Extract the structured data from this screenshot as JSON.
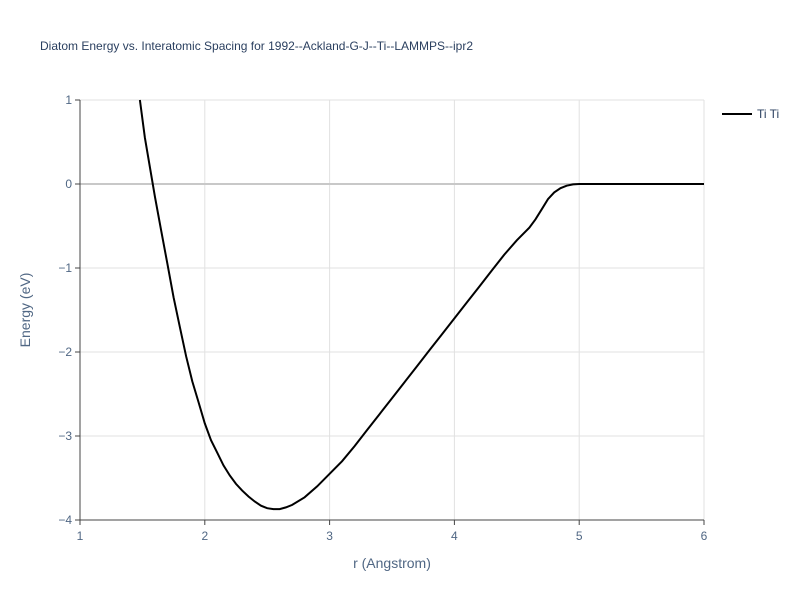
{
  "chart_data": {
    "type": "line",
    "title": "Diatom Energy vs. Interatomic Spacing for 1992--Ackland-G-J--Ti--LAMMPS--ipr2",
    "x_label": "r (Angstrom)",
    "y_label": "Energy (eV)",
    "xlim": [
      1,
      6
    ],
    "ylim": [
      -4,
      1
    ],
    "xticks": [
      1,
      2,
      3,
      4,
      5,
      6
    ],
    "yticks": [
      {
        "value": -4,
        "label": "−4"
      },
      {
        "value": -3,
        "label": "−3"
      },
      {
        "value": -2,
        "label": "−2"
      },
      {
        "value": -1,
        "label": "−1"
      },
      0,
      1
    ],
    "grid": true,
    "zeroline": true,
    "legend": "right",
    "x": [
      1.48,
      1.52,
      1.56,
      1.6,
      1.65,
      1.7,
      1.75,
      1.8,
      1.85,
      1.9,
      1.95,
      2.0,
      2.05,
      2.1,
      2.15,
      2.2,
      2.25,
      2.3,
      2.35,
      2.4,
      2.45,
      2.5,
      2.55,
      2.6,
      2.65,
      2.7,
      2.8,
      2.9,
      3.0,
      3.1,
      3.2,
      3.3,
      3.4,
      3.5,
      3.6,
      3.7,
      3.8,
      3.9,
      4.0,
      4.1,
      4.2,
      4.3,
      4.4,
      4.5,
      4.6,
      4.65,
      4.7,
      4.75,
      4.8,
      4.85,
      4.9,
      4.95,
      5.0,
      5.5,
      6.0
    ],
    "series": [
      {
        "name": "Ti Ti",
        "color": "#000000",
        "values": [
          1.0,
          0.55,
          0.2,
          -0.15,
          -0.55,
          -0.95,
          -1.35,
          -1.7,
          -2.05,
          -2.35,
          -2.6,
          -2.85,
          -3.05,
          -3.2,
          -3.35,
          -3.47,
          -3.57,
          -3.65,
          -3.72,
          -3.78,
          -3.83,
          -3.86,
          -3.87,
          -3.87,
          -3.85,
          -3.82,
          -3.73,
          -3.6,
          -3.45,
          -3.3,
          -3.12,
          -2.93,
          -2.74,
          -2.55,
          -2.36,
          -2.17,
          -1.98,
          -1.79,
          -1.6,
          -1.41,
          -1.22,
          -1.03,
          -0.84,
          -0.67,
          -0.52,
          -0.42,
          -0.3,
          -0.18,
          -0.1,
          -0.05,
          -0.02,
          -0.005,
          0,
          0,
          0
        ]
      }
    ]
  }
}
